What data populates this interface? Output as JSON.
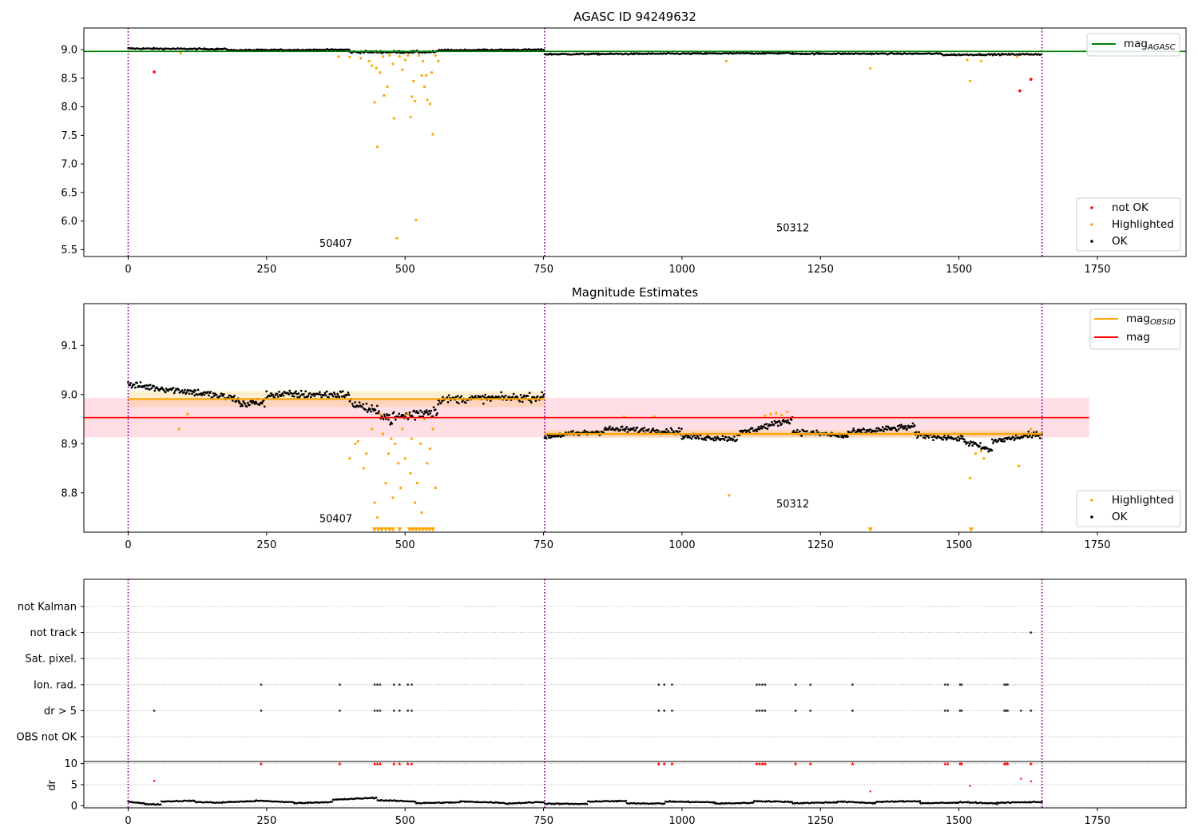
{
  "colors": {
    "ok": "#000000",
    "highlighted": "#ffa500",
    "not_ok": "#ff0000",
    "agasc_line": "#008000",
    "obsid_line": "#ffa500",
    "mag_line": "#ff0000",
    "obs_boundary": "#800080",
    "grid": "#b0b0b0"
  },
  "chart_data": [
    {
      "type": "scatter",
      "title": "AGASC ID 94249632",
      "xlim": [
        -80,
        1910
      ],
      "ylim": [
        5.38,
        9.38
      ],
      "xticks": [
        0,
        250,
        500,
        750,
        1000,
        1250,
        1500,
        1750
      ],
      "yticks": [
        5.5,
        6.0,
        6.5,
        7.0,
        7.5,
        8.0,
        8.5,
        9.0
      ],
      "ytick_labels": [
        "5.5",
        "6.0",
        "6.5",
        "7.0",
        "7.5",
        "8.0",
        "8.5",
        "9.0"
      ],
      "obs_boundaries": [
        0,
        752,
        1650
      ],
      "obsid_labels": [
        {
          "text": "50407",
          "x": 375,
          "y": 5.55
        },
        {
          "text": "50312",
          "x": 1200,
          "y": 5.82
        }
      ],
      "mag_agasc": 8.97,
      "legend_upper": [
        {
          "label": "mag",
          "sub": "AGASC",
          "kind": "line"
        }
      ],
      "legend_lower": [
        {
          "label": "not OK",
          "kind": "dot",
          "color_key": "not_ok"
        },
        {
          "label": "Highlighted",
          "kind": "dot",
          "color_key": "highlighted"
        },
        {
          "label": "OK",
          "kind": "dot",
          "color_key": "ok"
        }
      ],
      "ok_segments": [
        {
          "x0": 0,
          "x1": 180,
          "y0": 9.02,
          "y1": 9.01,
          "noise": 0.012
        },
        {
          "x0": 180,
          "x1": 400,
          "y0": 8.99,
          "y1": 9.0,
          "noise": 0.012
        },
        {
          "x0": 400,
          "x1": 560,
          "y0": 8.96,
          "y1": 8.96,
          "noise": 0.02
        },
        {
          "x0": 560,
          "x1": 752,
          "y0": 8.99,
          "y1": 9.0,
          "noise": 0.012
        },
        {
          "x0": 752,
          "x1": 1200,
          "y0": 8.92,
          "y1": 8.94,
          "noise": 0.012
        },
        {
          "x0": 1200,
          "x1": 1470,
          "y0": 8.93,
          "y1": 8.93,
          "noise": 0.012
        },
        {
          "x0": 1470,
          "x1": 1650,
          "y0": 8.91,
          "y1": 8.92,
          "noise": 0.012
        }
      ],
      "highlighted_points": [
        [
          95,
          8.94
        ],
        [
          380,
          8.88
        ],
        [
          400,
          8.87
        ],
        [
          420,
          8.85
        ],
        [
          435,
          8.8
        ],
        [
          440,
          8.72
        ],
        [
          445,
          8.08
        ],
        [
          448,
          8.68
        ],
        [
          450,
          7.3
        ],
        [
          455,
          8.6
        ],
        [
          460,
          8.88
        ],
        [
          462,
          8.2
        ],
        [
          468,
          8.35
        ],
        [
          472,
          8.9
        ],
        [
          478,
          8.75
        ],
        [
          480,
          7.8
        ],
        [
          485,
          5.7
        ],
        [
          490,
          8.88
        ],
        [
          495,
          8.65
        ],
        [
          500,
          8.82
        ],
        [
          505,
          8.9
        ],
        [
          510,
          7.82
        ],
        [
          512,
          8.18
        ],
        [
          515,
          8.45
        ],
        [
          518,
          8.1
        ],
        [
          520,
          6.02
        ],
        [
          525,
          8.9
        ],
        [
          530,
          8.55
        ],
        [
          532,
          8.8
        ],
        [
          535,
          8.35
        ],
        [
          538,
          8.55
        ],
        [
          540,
          8.12
        ],
        [
          545,
          8.05
        ],
        [
          548,
          8.6
        ],
        [
          550,
          7.52
        ],
        [
          555,
          8.9
        ],
        [
          560,
          8.8
        ],
        [
          1080,
          8.8
        ],
        [
          1340,
          8.67
        ],
        [
          1515,
          8.82
        ],
        [
          1520,
          8.45
        ],
        [
          1540,
          8.8
        ],
        [
          1605,
          8.88
        ]
      ],
      "not_ok_points": [
        [
          47,
          8.61
        ],
        [
          1610,
          8.28
        ],
        [
          1630,
          8.48
        ]
      ]
    },
    {
      "type": "scatter",
      "title": "Magnitude Estimates",
      "xlim": [
        -80,
        1910
      ],
      "ylim": [
        8.72,
        9.185
      ],
      "xticks": [
        0,
        250,
        500,
        750,
        1000,
        1250,
        1500,
        1750
      ],
      "yticks": [
        8.8,
        8.9,
        9.0,
        9.1
      ],
      "ytick_labels": [
        "8.8",
        "8.9",
        "9.0",
        "9.1"
      ],
      "obs_boundaries": [
        0,
        752,
        1650
      ],
      "obsid_labels": [
        {
          "text": "50407",
          "x": 375,
          "y": 8.74
        },
        {
          "text": "50312",
          "x": 1200,
          "y": 8.77
        }
      ],
      "mag": 8.953,
      "mag_band": [
        8.913,
        8.993
      ],
      "mag_xrange": [
        -80,
        1735
      ],
      "obsid_mags": [
        {
          "x0": 0,
          "x1": 752,
          "mag": 8.991,
          "band": [
            8.975,
            9.007
          ]
        },
        {
          "x0": 752,
          "x1": 1650,
          "mag": 8.92,
          "band": [
            8.912,
            8.928
          ]
        }
      ],
      "legend_upper": [
        {
          "label": "mag",
          "sub": "OBSID",
          "kind": "line",
          "color_key": "obsid_line"
        },
        {
          "label": "mag",
          "sub": "",
          "kind": "line",
          "color_key": "mag_line"
        }
      ],
      "legend_lower": [
        {
          "label": "Highlighted",
          "kind": "dot",
          "color_key": "highlighted"
        },
        {
          "label": "OK",
          "kind": "dot",
          "color_key": "ok"
        }
      ],
      "ok_segments": [
        {
          "x0": 0,
          "x1": 120,
          "y0": 9.02,
          "y1": 9.005,
          "noise": 0.007
        },
        {
          "x0": 120,
          "x1": 200,
          "y0": 9.005,
          "y1": 8.99,
          "noise": 0.008
        },
        {
          "x0": 200,
          "x1": 250,
          "y0": 8.98,
          "y1": 8.985,
          "noise": 0.009
        },
        {
          "x0": 250,
          "x1": 400,
          "y0": 9.0,
          "y1": 9.0,
          "noise": 0.008
        },
        {
          "x0": 400,
          "x1": 470,
          "y0": 8.985,
          "y1": 8.955,
          "noise": 0.01
        },
        {
          "x0": 470,
          "x1": 560,
          "y0": 8.95,
          "y1": 8.97,
          "noise": 0.014
        },
        {
          "x0": 560,
          "x1": 752,
          "y0": 8.99,
          "y1": 8.995,
          "noise": 0.008
        },
        {
          "x0": 752,
          "x1": 860,
          "y0": 8.915,
          "y1": 8.925,
          "noise": 0.006
        },
        {
          "x0": 860,
          "x1": 1000,
          "y0": 8.93,
          "y1": 8.925,
          "noise": 0.006
        },
        {
          "x0": 1000,
          "x1": 1100,
          "y0": 8.915,
          "y1": 8.91,
          "noise": 0.006
        },
        {
          "x0": 1100,
          "x1": 1200,
          "y0": 8.92,
          "y1": 8.95,
          "noise": 0.006
        },
        {
          "x0": 1200,
          "x1": 1300,
          "y0": 8.925,
          "y1": 8.915,
          "noise": 0.006
        },
        {
          "x0": 1300,
          "x1": 1420,
          "y0": 8.922,
          "y1": 8.935,
          "noise": 0.006
        },
        {
          "x0": 1420,
          "x1": 1510,
          "y0": 8.918,
          "y1": 8.91,
          "noise": 0.006
        },
        {
          "x0": 1510,
          "x1": 1560,
          "y0": 8.905,
          "y1": 8.885,
          "noise": 0.007
        },
        {
          "x0": 1560,
          "x1": 1650,
          "y0": 8.905,
          "y1": 8.92,
          "noise": 0.006
        }
      ],
      "highlighted_points": [
        [
          92,
          8.93
        ],
        [
          107,
          8.96
        ],
        [
          400,
          8.87
        ],
        [
          410,
          8.9
        ],
        [
          415,
          8.905
        ],
        [
          425,
          8.85
        ],
        [
          430,
          8.88
        ],
        [
          440,
          8.93
        ],
        [
          445,
          8.78
        ],
        [
          450,
          8.75
        ],
        [
          455,
          8.96
        ],
        [
          460,
          8.92
        ],
        [
          465,
          8.82
        ],
        [
          470,
          8.88
        ],
        [
          475,
          8.91
        ],
        [
          478,
          8.79
        ],
        [
          482,
          8.9
        ],
        [
          488,
          8.86
        ],
        [
          492,
          8.81
        ],
        [
          495,
          8.93
        ],
        [
          500,
          8.87
        ],
        [
          505,
          8.96
        ],
        [
          510,
          8.84
        ],
        [
          512,
          8.91
        ],
        [
          518,
          8.78
        ],
        [
          522,
          8.82
        ],
        [
          528,
          8.9
        ],
        [
          530,
          8.76
        ],
        [
          535,
          8.95
        ],
        [
          540,
          8.86
        ],
        [
          545,
          8.89
        ],
        [
          550,
          8.93
        ],
        [
          555,
          8.81
        ],
        [
          895,
          8.955
        ],
        [
          950,
          8.955
        ],
        [
          1085,
          8.795
        ],
        [
          1150,
          8.957
        ],
        [
          1160,
          8.96
        ],
        [
          1170,
          8.962
        ],
        [
          1180,
          8.958
        ],
        [
          1190,
          8.965
        ],
        [
          1520,
          8.83
        ],
        [
          1530,
          8.88
        ],
        [
          1540,
          8.885
        ],
        [
          1545,
          8.87
        ],
        [
          1608,
          8.855
        ],
        [
          1630,
          8.93
        ]
      ],
      "lower_limit_x": [
        445,
        452,
        458,
        465,
        472,
        478,
        490,
        508,
        514,
        520,
        526,
        532,
        538,
        544,
        550,
        1340,
        1522
      ]
    },
    {
      "type": "scatter",
      "title": "",
      "xlim": [
        -80,
        1910
      ],
      "obs_boundaries": [
        0,
        752,
        1650
      ],
      "flag_labels": [
        "not Kalman",
        "not track",
        "Sat. pixel.",
        "Ion. rad.",
        "dr > 5",
        "OBS not OK"
      ],
      "flag_points": {
        "not track": [
          1630
        ],
        "Ion. rad.": [
          240,
          382,
          445,
          450,
          455,
          480,
          490,
          505,
          512,
          958,
          968,
          982,
          1135,
          1140,
          1145,
          1150,
          1205,
          1232,
          1308,
          1475,
          1480,
          1502,
          1505,
          1582,
          1585,
          1588
        ],
        "dr > 5": [
          47,
          240,
          382,
          445,
          450,
          455,
          480,
          490,
          505,
          512,
          958,
          968,
          982,
          1135,
          1140,
          1145,
          1150,
          1205,
          1232,
          1308,
          1475,
          1480,
          1502,
          1505,
          1582,
          1585,
          1588,
          1612,
          1630
        ]
      }
    },
    {
      "type": "scatter",
      "title": "",
      "ylabel": "dr",
      "xlim": [
        -80,
        1910
      ],
      "ylim": [
        -0.5,
        10.5
      ],
      "xticks": [
        0,
        250,
        500,
        750,
        1000,
        1250,
        1500,
        1750
      ],
      "yticks": [
        0,
        5,
        10
      ],
      "ytick_labels": [
        "0",
        "5",
        "10"
      ],
      "obs_boundaries": [
        0,
        752,
        1650
      ],
      "capped_x": [
        240,
        382,
        445,
        450,
        455,
        480,
        490,
        505,
        512,
        958,
        968,
        982,
        1135,
        1140,
        1145,
        1150,
        1205,
        1232,
        1308,
        1475,
        1480,
        1502,
        1505,
        1582,
        1585,
        1588,
        1630
      ],
      "red_points": [
        [
          47,
          5.9
        ],
        [
          1340,
          3.4
        ],
        [
          1520,
          4.7
        ],
        [
          1612,
          6.4
        ],
        [
          1630,
          5.8
        ]
      ],
      "dr_segments": [
        {
          "x0": 0,
          "x1": 30,
          "y0": 1.0,
          "y1": 0.5
        },
        {
          "x0": 30,
          "x1": 60,
          "y0": 0.4,
          "y1": 0.3
        },
        {
          "x0": 60,
          "x1": 120,
          "y0": 1.0,
          "y1": 1.2
        },
        {
          "x0": 120,
          "x1": 170,
          "y0": 0.9,
          "y1": 0.7
        },
        {
          "x0": 170,
          "x1": 230,
          "y0": 0.8,
          "y1": 1.1
        },
        {
          "x0": 230,
          "x1": 300,
          "y0": 1.2,
          "y1": 0.8
        },
        {
          "x0": 300,
          "x1": 370,
          "y0": 0.6,
          "y1": 0.9
        },
        {
          "x0": 370,
          "x1": 450,
          "y0": 1.4,
          "y1": 1.9
        },
        {
          "x0": 450,
          "x1": 520,
          "y0": 1.3,
          "y1": 1.0
        },
        {
          "x0": 520,
          "x1": 600,
          "y0": 0.6,
          "y1": 0.8
        },
        {
          "x0": 600,
          "x1": 680,
          "y0": 1.0,
          "y1": 0.7
        },
        {
          "x0": 680,
          "x1": 752,
          "y0": 0.5,
          "y1": 0.9
        },
        {
          "x0": 752,
          "x1": 830,
          "y0": 0.5,
          "y1": 0.4
        },
        {
          "x0": 830,
          "x1": 900,
          "y0": 1.0,
          "y1": 1.1
        },
        {
          "x0": 900,
          "x1": 970,
          "y0": 0.6,
          "y1": 0.5
        },
        {
          "x0": 970,
          "x1": 1060,
          "y0": 1.0,
          "y1": 0.8
        },
        {
          "x0": 1060,
          "x1": 1130,
          "y0": 0.5,
          "y1": 0.7
        },
        {
          "x0": 1130,
          "x1": 1200,
          "y0": 1.1,
          "y1": 0.9
        },
        {
          "x0": 1200,
          "x1": 1280,
          "y0": 0.6,
          "y1": 0.8
        },
        {
          "x0": 1280,
          "x1": 1350,
          "y0": 1.0,
          "y1": 0.6
        },
        {
          "x0": 1350,
          "x1": 1430,
          "y0": 0.9,
          "y1": 1.1
        },
        {
          "x0": 1430,
          "x1": 1500,
          "y0": 0.6,
          "y1": 0.7
        },
        {
          "x0": 1500,
          "x1": 1570,
          "y0": 0.9,
          "y1": 0.5
        },
        {
          "x0": 1570,
          "x1": 1650,
          "y0": 0.7,
          "y1": 0.9
        }
      ]
    }
  ]
}
